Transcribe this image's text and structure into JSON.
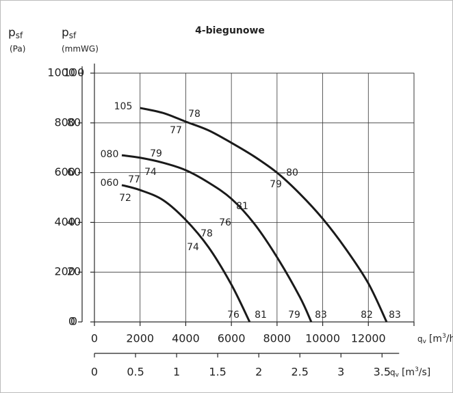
{
  "chart_data": {
    "type": "line",
    "title": "4-biegunowe",
    "y_label": {
      "p": "p",
      "sub": "sf",
      "unit": "(Pa)"
    },
    "y2_label": {
      "p": "p",
      "sub": "sf",
      "unit": "(mmWG)"
    },
    "x_label": {
      "q": "q",
      "sub": "v",
      "pre": "[m",
      "sup": "3",
      "post": "/h]"
    },
    "x2_label": {
      "q": "q",
      "sub": "v",
      "pre": "[m",
      "sup": "3",
      "post": "/s]"
    },
    "xlim": [
      0,
      14000
    ],
    "xticks": [
      0,
      2000,
      4000,
      6000,
      8000,
      10000,
      12000,
      14000
    ],
    "xtick_labels_shown": 7,
    "x2lim": [
      0,
      3.8889
    ],
    "x2ticks": [
      0,
      0.5,
      1,
      1.5,
      2,
      2.5,
      3,
      3.5
    ],
    "ylim": [
      0,
      100
    ],
    "yticks": [
      0,
      20,
      40,
      60,
      80,
      100
    ],
    "y2lim": [
      0,
      1000
    ],
    "y2ticks": [
      0,
      200,
      400,
      600,
      800,
      1000
    ],
    "grid": true,
    "series": [
      {
        "name": "105",
        "color": "#1a1a1a",
        "x": [
          2000,
          3000,
          4000,
          5000,
          6000,
          7000,
          8000,
          9000,
          10000,
          11000,
          12000,
          12800
        ],
        "values": [
          86,
          84,
          80.5,
          77,
          72,
          66.5,
          60,
          51.5,
          41.5,
          29.5,
          15.5,
          0
        ]
      },
      {
        "name": "080",
        "color": "#1a1a1a",
        "x": [
          1200,
          2000,
          3000,
          4000,
          5000,
          6000,
          7000,
          8000,
          9000,
          9500
        ],
        "values": [
          67,
          66,
          64,
          61,
          56,
          49.5,
          39.5,
          26,
          10,
          0
        ]
      },
      {
        "name": "060",
        "color": "#1a1a1a",
        "x": [
          1200,
          2000,
          3000,
          4000,
          5000,
          6000,
          6800
        ],
        "values": [
          55,
          53,
          49,
          41,
          30,
          15,
          0
        ]
      }
    ],
    "annotations": [
      {
        "text": "78",
        "color": "#3a86c0"
      },
      {
        "text": "77",
        "color": "#3aa23a"
      },
      {
        "text": "80",
        "color": "#3a86c0"
      },
      {
        "text": "79",
        "color": "#3aa23a"
      },
      {
        "text": "79",
        "color": "#3a86c0"
      },
      {
        "text": "74",
        "color": "#3aa23a"
      },
      {
        "text": "81",
        "color": "#3a86c0"
      },
      {
        "text": "76",
        "color": "#3aa23a"
      },
      {
        "text": "77",
        "color": "#3a86c0"
      },
      {
        "text": "72",
        "color": "#3aa23a"
      },
      {
        "text": "78",
        "color": "#3a86c0"
      },
      {
        "text": "74",
        "color": "#3aa23a"
      },
      {
        "text": "76",
        "color": "#3aa23a"
      },
      {
        "text": "81",
        "color": "#3a86c0"
      },
      {
        "text": "79",
        "color": "#3aa23a"
      },
      {
        "text": "83",
        "color": "#3a86c0"
      },
      {
        "text": "82",
        "color": "#3aa23a"
      },
      {
        "text": "83",
        "color": "#3a86c0"
      }
    ]
  }
}
